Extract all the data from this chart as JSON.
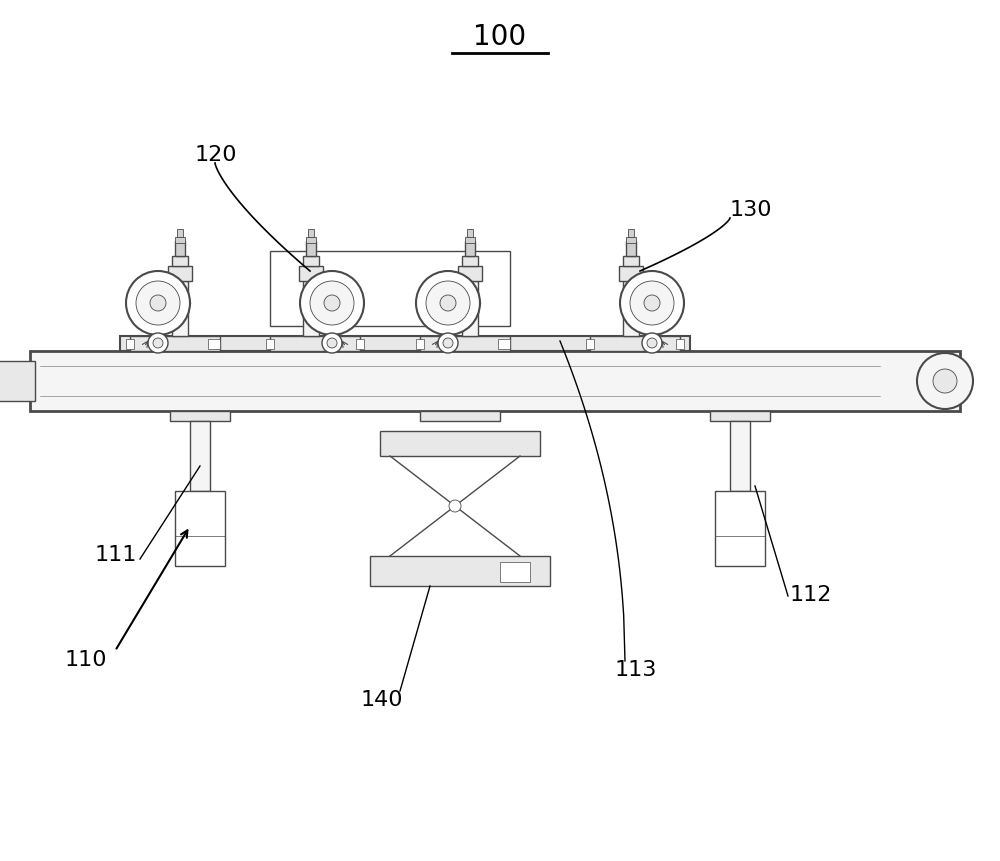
{
  "bg_color": "#ffffff",
  "lc": "#4a4a4a",
  "lc2": "#666666",
  "fc_light": "#f5f5f5",
  "fc_mid": "#e8e8e8",
  "fc_dark": "#d0d0d0",
  "label_100": "100",
  "label_120": "120",
  "label_130": "130",
  "label_110": "110",
  "label_111": "111",
  "label_112": "112",
  "label_113": "113",
  "label_140": "140",
  "figsize": [
    10.0,
    8.61
  ],
  "dpi": 100
}
